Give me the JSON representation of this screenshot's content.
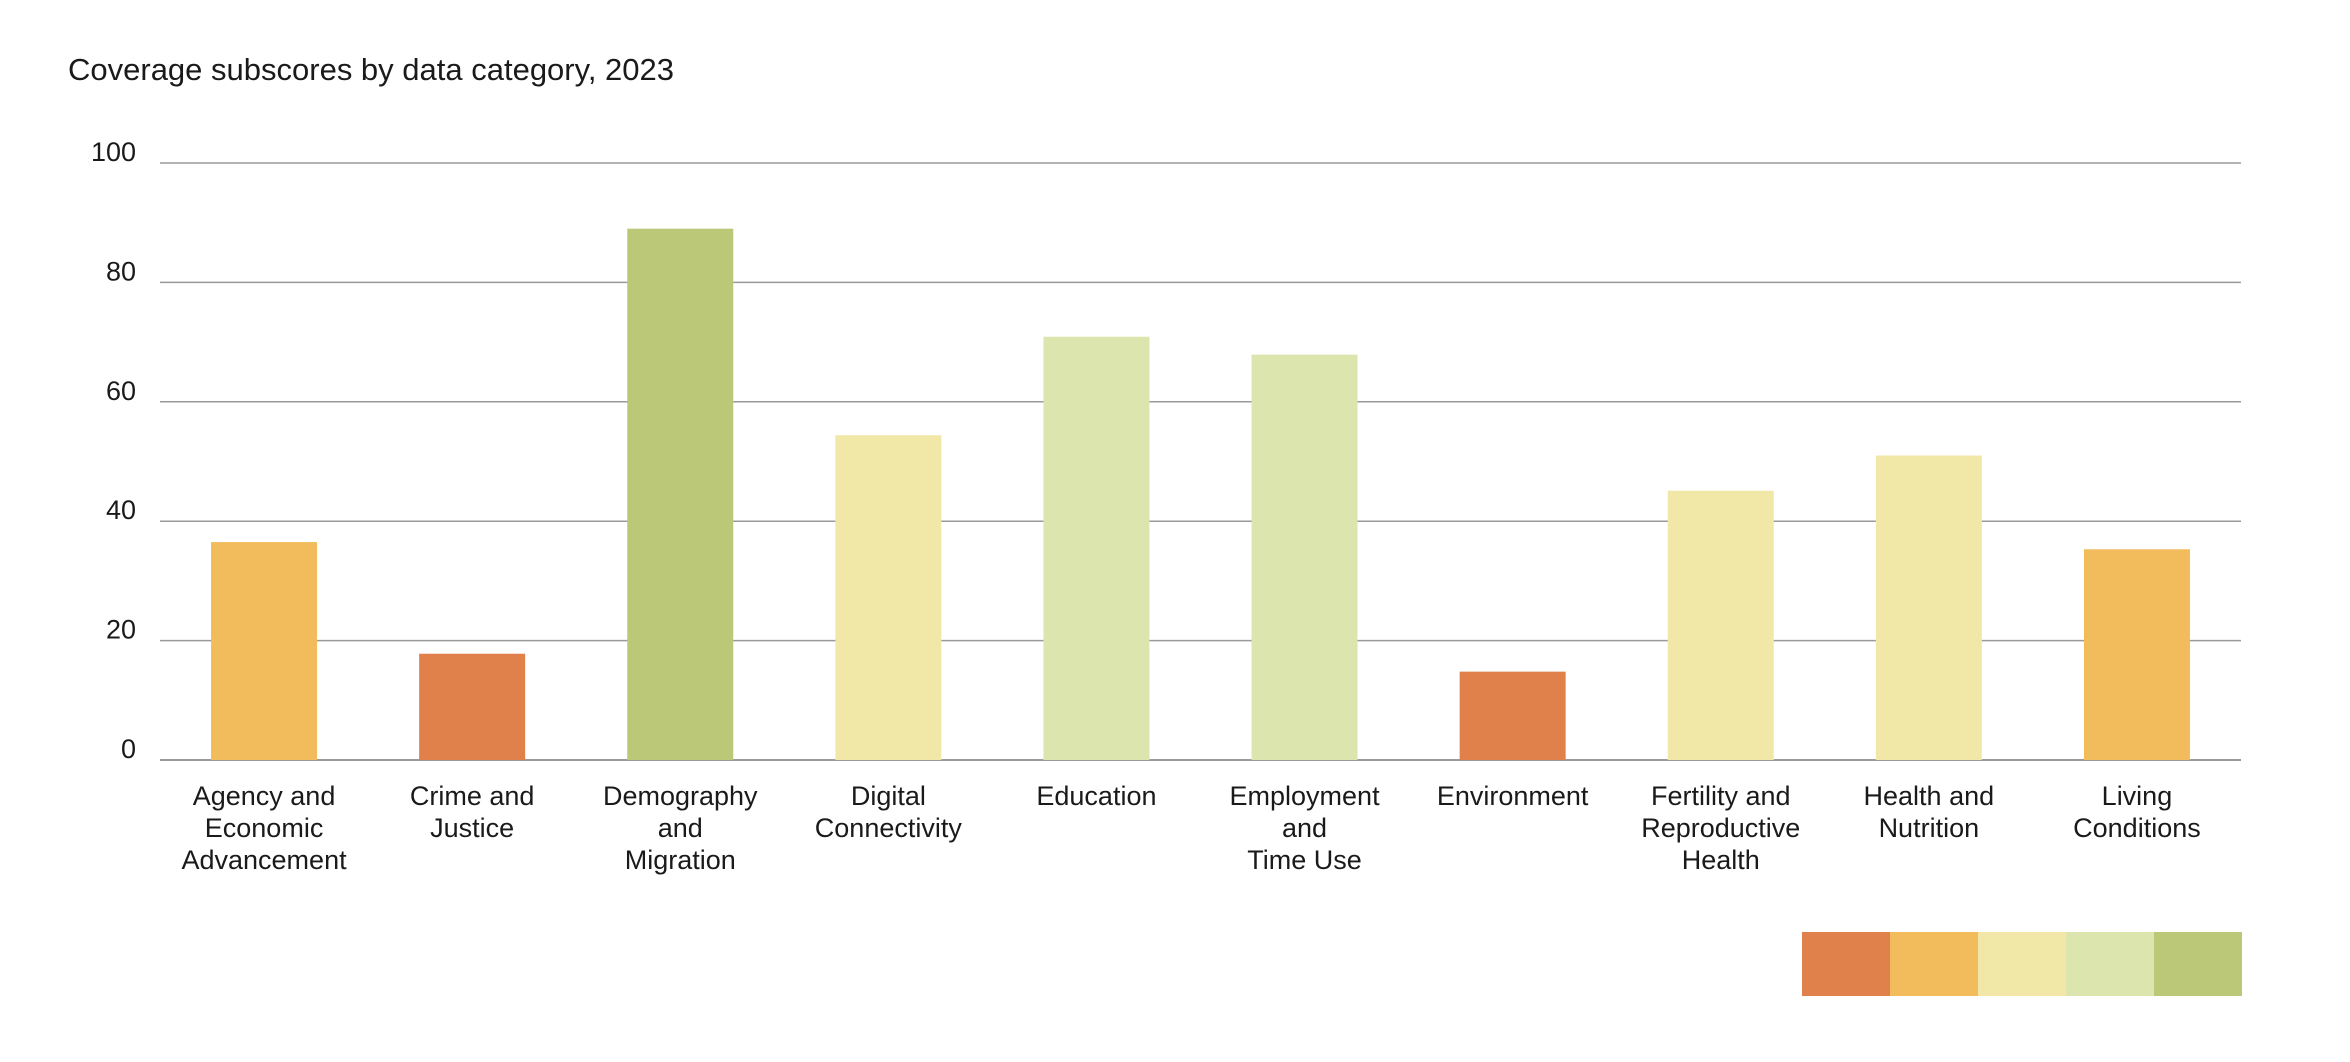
{
  "chart_data": {
    "type": "bar",
    "title": "Coverage subscores by data category, 2023",
    "xlabel": "",
    "ylabel": "",
    "ylim": [
      0,
      100
    ],
    "yticks": [
      "0",
      "20",
      "40",
      "60",
      "80",
      "100"
    ],
    "grid": true,
    "categories": [
      "Agency and Economic Advancement",
      "Crime and Justice",
      "Demography and Migration",
      "Digital Connectivity",
      "Education",
      "Employment and Time Use",
      "Environment",
      "Fertility and Reproductive Health",
      "Health and Nutrition",
      "Living Conditions"
    ],
    "category_lines": [
      [
        "Agency and",
        "Economic",
        "Advancement"
      ],
      [
        "Crime and",
        "Justice"
      ],
      [
        "Demography",
        "and",
        "Migration"
      ],
      [
        "Digital",
        "Connectivity"
      ],
      [
        "Education"
      ],
      [
        "Employment",
        "and",
        "Time Use"
      ],
      [
        "Environment"
      ],
      [
        "Fertility and",
        "Reproductive",
        "Health"
      ],
      [
        "Health and",
        "Nutrition"
      ],
      [
        "Living",
        "Conditions"
      ]
    ],
    "values": [
      36.5,
      17.8,
      89.0,
      54.4,
      70.9,
      67.9,
      14.8,
      45.1,
      51.0,
      35.3
    ],
    "bar_colors": [
      "#F2BB5B",
      "#E0804B",
      "#BAC878",
      "#F1E8A7",
      "#DCE5AD",
      "#DCE5AD",
      "#E0804B",
      "#F1E8A7",
      "#F1E8A7",
      "#F2BB5B"
    ],
    "color_scale": [
      "#E0804B",
      "#F2BB5B",
      "#F1E8A7",
      "#DCE5AD",
      "#BAC878"
    ]
  }
}
